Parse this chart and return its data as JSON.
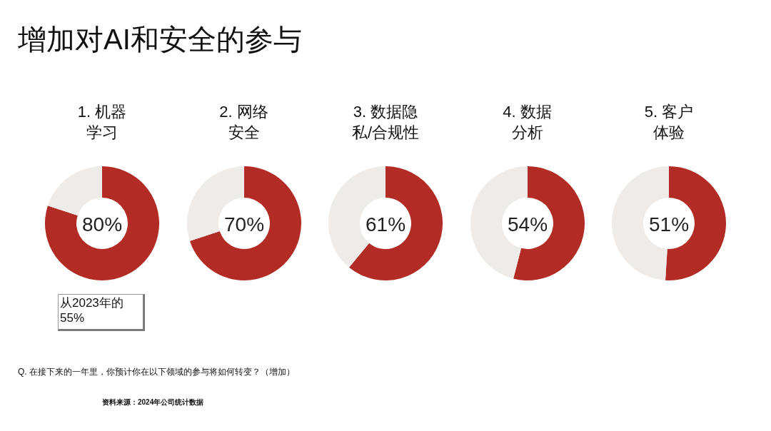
{
  "chart_data": [
    {
      "type": "other",
      "title": "增加对AI和安全的参与"
    },
    {
      "type": "donut",
      "title": "1. 机器学习",
      "categories": [
        null,
        null
      ],
      "values": [
        80,
        20
      ],
      "colors": [
        "#b22b25",
        "#efebe8"
      ],
      "value_labels": [
        "80%",
        null
      ],
      "annotations": [
        "从2023年的55%"
      ]
    },
    {
      "type": "donut",
      "title": "2. 网络安全",
      "categories": [
        null,
        null
      ],
      "values": [
        70,
        30
      ],
      "colors": [
        "#b22b25",
        "#efebe8"
      ],
      "value_labels": [
        "70%",
        null
      ]
    },
    {
      "type": "donut",
      "title": "3. 数据隐私/合规性",
      "categories": [
        null,
        null
      ],
      "values": [
        61,
        39
      ],
      "colors": [
        "#b22b25",
        "#efebe8"
      ],
      "value_labels": [
        "61%",
        null
      ]
    },
    {
      "type": "donut",
      "title": "4. 数据分析",
      "categories": [
        null,
        null
      ],
      "values": [
        54,
        46
      ],
      "colors": [
        "#b22b25",
        "#efebe8"
      ],
      "value_labels": [
        "54%",
        null
      ]
    },
    {
      "type": "donut",
      "title": "5. 客户体验",
      "categories": [
        null,
        null
      ],
      "values": [
        51,
        49
      ],
      "colors": [
        "#b22b25",
        "#efebe8"
      ],
      "value_labels": [
        "51%",
        null
      ]
    },
    {
      "type": "other",
      "annotations": [
        "Q. 在接下来的一年里，你预计你在以下领域的参与将如何转变？（增加）",
        "资料来源：2024年公司统计数据"
      ]
    }
  ]
}
